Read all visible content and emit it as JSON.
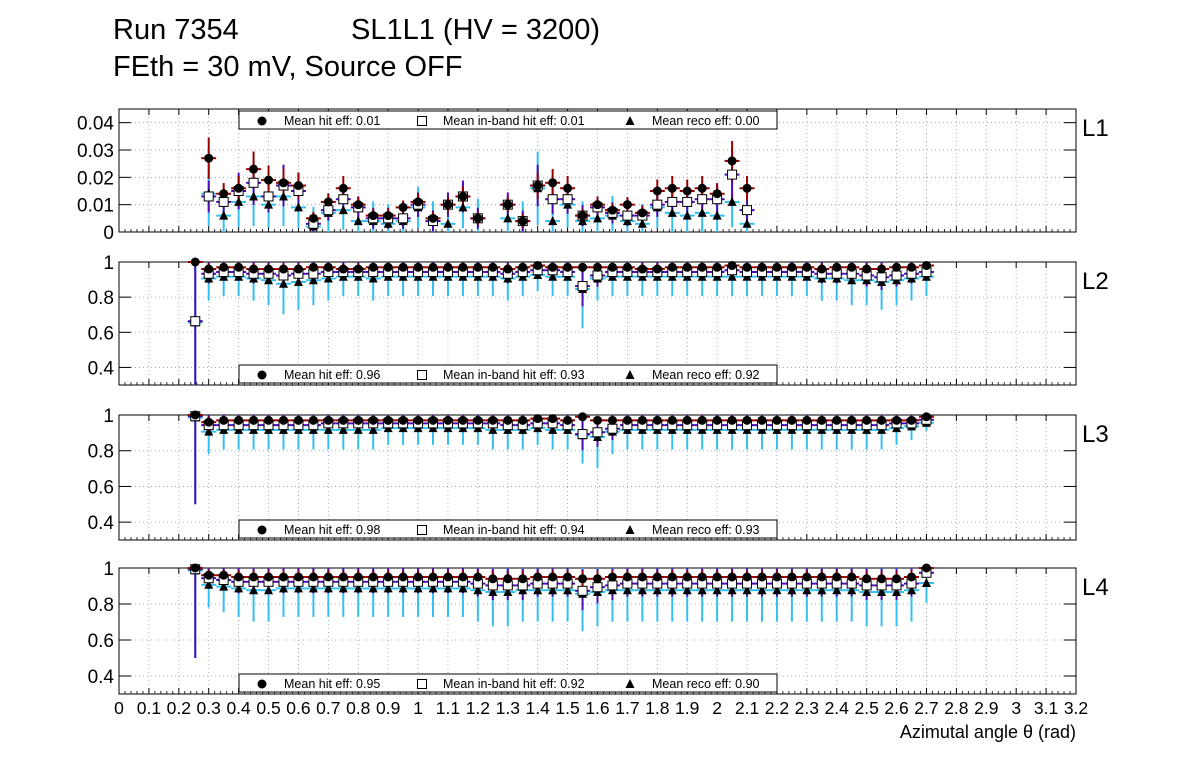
{
  "header": {
    "run": "Run 7354",
    "chamber": "SL1L1 (HV = 3200)",
    "conditions": "FEth = 30 mV, Source OFF"
  },
  "colors": {
    "hit": "#990000",
    "inband": "#4b0bb8",
    "reco": "#33c0f0",
    "marker": "#000000",
    "grid": "#999999"
  },
  "chart_data": {
    "type": "scatter",
    "xlabel": "Azimutal angle θ (rad)",
    "xlim": [
      0,
      3.2
    ],
    "x_ticks": [
      "0",
      "0.1",
      "0.2",
      "0.3",
      "0.4",
      "0.5",
      "0.6",
      "0.7",
      "0.8",
      "0.9",
      "1",
      "1.1",
      "1.2",
      "1.3",
      "1.4",
      "1.5",
      "1.6",
      "1.7",
      "1.8",
      "1.9",
      "2",
      "2.1",
      "2.2",
      "2.3",
      "2.4",
      "2.5",
      "2.6",
      "2.7",
      "2.8",
      "2.9",
      "3",
      "3.1",
      "3.2"
    ],
    "x_tick_values": [
      0,
      0.1,
      0.2,
      0.3,
      0.4,
      0.5,
      0.6,
      0.7,
      0.8,
      0.9,
      1.0,
      1.1,
      1.2,
      1.3,
      1.4,
      1.5,
      1.6,
      1.7,
      1.8,
      1.9,
      2.0,
      2.1,
      2.2,
      2.3,
      2.4,
      2.5,
      2.6,
      2.7,
      2.8,
      2.9,
      3.0,
      3.1,
      3.2
    ],
    "x_tick_labels": [
      "0",
      "0.1",
      "0.2",
      "0.3",
      "0.4",
      "0.5",
      "0.6",
      "0.7",
      "0.8",
      "0.9",
      "1",
      "1.1",
      "1.2",
      "1.3",
      "1.4",
      "1.5",
      "1.6",
      "1.7",
      "1.8",
      "1.9",
      "2",
      "2.1",
      "2.2",
      "2.3",
      "2.4",
      "2.5",
      "2.6",
      "2.7",
      "2.8",
      "2.9",
      "3",
      "3.1",
      "3.2"
    ],
    "x_tick_text": "0 0.10.20.30.40.50.60.70.80.9 1 1.11.21.31.41.51.61.71.81.9 2 2.12.22.32.42.52.62.72.82.9 3 3.13.2",
    "legend_labels": [
      "Mean hit  eff:",
      "Mean in-band hit eff:",
      "Mean reco eff:"
    ],
    "panels": [
      {
        "name": "L1",
        "ylim": [
          0,
          0.045
        ],
        "yticks": [
          0,
          0.01,
          0.02,
          0.03,
          0.04
        ],
        "ytick_labels": [
          "0",
          "0.01",
          "0.02",
          "0.03",
          "0.04"
        ],
        "legend_position": "top",
        "means": [
          "0.01",
          "0.01",
          "0.00"
        ],
        "x": [
          0.255,
          0.3,
          0.325,
          0.35,
          0.375,
          0.4,
          0.425,
          0.45,
          0.475,
          0.5,
          0.525,
          0.55,
          0.575,
          0.6,
          0.625,
          0.65,
          0.675,
          0.7,
          0.725,
          0.75,
          0.775,
          0.8,
          0.825,
          0.85,
          0.875,
          0.9,
          0.925,
          0.95,
          0.975,
          1.0,
          1.025,
          1.05,
          1.075,
          1.1,
          1.125,
          1.15,
          1.175,
          1.2,
          1.225,
          1.25,
          1.275,
          1.3,
          1.325,
          1.35,
          1.375,
          1.4,
          1.425,
          1.45,
          1.475,
          1.5,
          1.525,
          1.55,
          1.575,
          1.6,
          1.625,
          1.65,
          1.675,
          1.7,
          1.725,
          1.75,
          1.775,
          1.8,
          1.825,
          1.85,
          1.875,
          1.9,
          1.925,
          1.95,
          1.975,
          2.0,
          2.025,
          2.05,
          2.075,
          2.1,
          2.125,
          2.15,
          2.175,
          2.2,
          2.225,
          2.25,
          2.275,
          2.3,
          2.325,
          2.35,
          2.375,
          2.4,
          2.425,
          2.45,
          2.475,
          2.5,
          2.525,
          2.55,
          2.575,
          2.6,
          2.625,
          2.65,
          2.675,
          2.7,
          2.725
        ],
        "hit": [
          null,
          0.027,
          null,
          0.014,
          null,
          0.016,
          null,
          0.023,
          null,
          0.019,
          null,
          0.018,
          null,
          0.017,
          null,
          0.005,
          null,
          0.011,
          null,
          0.016,
          null,
          0.01,
          null,
          0.006,
          null,
          0.006,
          null,
          0.009,
          null,
          0.011,
          null,
          0.005,
          null,
          0.01,
          null,
          0.013,
          null,
          0.005,
          null,
          null,
          null,
          0.01,
          null,
          0.004,
          null,
          0.017,
          null,
          0.018,
          null,
          0.016,
          null,
          0.006,
          null,
          0.01,
          null,
          0.008,
          null,
          0.01,
          null,
          0.007,
          null,
          0.015,
          null,
          0.016,
          null,
          0.015,
          null,
          0.016,
          null,
          0.014,
          null,
          0.026,
          null,
          0.016,
          null,
          null,
          null,
          null,
          null,
          null,
          null,
          null,
          null,
          null,
          null,
          null,
          null,
          null,
          null,
          null,
          null,
          null,
          null,
          null,
          null,
          null,
          null
        ],
        "inband": [
          null,
          0.013,
          null,
          0.011,
          null,
          0.015,
          null,
          0.018,
          null,
          0.013,
          null,
          0.017,
          null,
          0.015,
          null,
          0.003,
          null,
          0.008,
          null,
          0.012,
          null,
          0.009,
          null,
          0.005,
          null,
          0.005,
          null,
          0.005,
          null,
          0.01,
          null,
          0.004,
          null,
          0.01,
          null,
          0.013,
          null,
          0.005,
          null,
          null,
          null,
          0.01,
          null,
          0.004,
          null,
          0.017,
          null,
          0.012,
          null,
          0.012,
          null,
          0.006,
          null,
          0.009,
          null,
          0.007,
          null,
          0.006,
          null,
          0.006,
          null,
          0.01,
          null,
          0.011,
          null,
          0.011,
          null,
          0.012,
          null,
          0.012,
          null,
          0.021,
          null,
          0.008,
          null,
          null,
          null,
          null,
          null,
          null,
          null,
          null,
          null,
          null,
          null,
          null,
          null,
          null,
          null,
          null,
          null,
          null,
          null,
          null,
          null,
          null,
          null
        ],
        "reco": [
          null,
          0.014,
          null,
          0.006,
          null,
          0.011,
          null,
          0.013,
          null,
          0.01,
          null,
          0.013,
          null,
          0.009,
          null,
          0.002,
          null,
          0.007,
          null,
          0.008,
          null,
          0.004,
          null,
          0.004,
          null,
          0.003,
          null,
          0.004,
          null,
          0.009,
          null,
          0.004,
          null,
          0.003,
          null,
          0.009,
          null,
          0.005,
          null,
          null,
          null,
          0.005,
          null,
          0.004,
          null,
          0.016,
          null,
          0.004,
          null,
          0.01,
          null,
          0.004,
          null,
          0.005,
          null,
          0.006,
          null,
          0.004,
          null,
          0.003,
          null,
          0.009,
          null,
          0.007,
          null,
          0.006,
          null,
          0.007,
          null,
          0.006,
          null,
          0.011,
          null,
          0.003,
          null,
          null,
          null,
          null,
          null,
          null,
          null,
          null,
          null,
          null,
          null,
          null,
          null,
          null,
          null,
          null,
          null,
          null,
          null,
          null,
          null,
          null,
          null
        ]
      },
      {
        "name": "L2",
        "ylim": [
          0.3,
          1.0
        ],
        "yticks": [
          0.4,
          0.6,
          0.8,
          1.0
        ],
        "ytick_labels": [
          "0.4",
          "0.6",
          "0.8",
          "1"
        ],
        "legend_position": "bottom",
        "means": [
          "0.96",
          "0.93",
          "0.92"
        ],
        "x": [
          0.255,
          0.3,
          0.35,
          0.4,
          0.45,
          0.5,
          0.55,
          0.6,
          0.65,
          0.7,
          0.75,
          0.8,
          0.85,
          0.9,
          0.95,
          1.0,
          1.05,
          1.1,
          1.15,
          1.2,
          1.25,
          1.3,
          1.35,
          1.4,
          1.45,
          1.5,
          1.55,
          1.6,
          1.65,
          1.7,
          1.75,
          1.8,
          1.85,
          1.9,
          1.95,
          2.0,
          2.05,
          2.1,
          2.15,
          2.2,
          2.25,
          2.3,
          2.35,
          2.4,
          2.45,
          2.5,
          2.55,
          2.6,
          2.65,
          2.7
        ],
        "hit": [
          1.0,
          0.96,
          0.97,
          0.97,
          0.96,
          0.96,
          0.96,
          0.96,
          0.97,
          0.97,
          0.96,
          0.96,
          0.97,
          0.97,
          0.97,
          0.97,
          0.97,
          0.97,
          0.97,
          0.97,
          0.97,
          0.96,
          0.97,
          0.98,
          0.97,
          0.97,
          0.97,
          0.97,
          0.97,
          0.97,
          0.96,
          0.96,
          0.97,
          0.97,
          0.97,
          0.97,
          0.98,
          0.97,
          0.97,
          0.97,
          0.97,
          0.97,
          0.96,
          0.97,
          0.97,
          0.96,
          0.96,
          0.97,
          0.97,
          0.98
        ],
        "inband": [
          0.67,
          0.94,
          0.95,
          0.95,
          0.94,
          0.94,
          0.93,
          0.94,
          0.94,
          0.95,
          0.95,
          0.95,
          0.95,
          0.95,
          0.95,
          0.95,
          0.95,
          0.95,
          0.95,
          0.95,
          0.95,
          0.94,
          0.95,
          0.96,
          0.96,
          0.95,
          0.87,
          0.93,
          0.95,
          0.95,
          0.95,
          0.95,
          0.95,
          0.95,
          0.95,
          0.95,
          0.96,
          0.95,
          0.95,
          0.95,
          0.95,
          0.95,
          0.94,
          0.94,
          0.94,
          0.93,
          0.92,
          0.93,
          0.94,
          0.95
        ],
        "reco": [
          0.67,
          0.92,
          0.93,
          0.93,
          0.92,
          0.91,
          0.89,
          0.9,
          0.91,
          0.92,
          0.93,
          0.93,
          0.92,
          0.93,
          0.93,
          0.93,
          0.93,
          0.93,
          0.93,
          0.93,
          0.93,
          0.92,
          0.93,
          0.94,
          0.93,
          0.93,
          0.86,
          0.92,
          0.93,
          0.93,
          0.93,
          0.93,
          0.93,
          0.93,
          0.93,
          0.93,
          0.93,
          0.93,
          0.93,
          0.93,
          0.93,
          0.93,
          0.92,
          0.92,
          0.91,
          0.91,
          0.9,
          0.91,
          0.92,
          0.93
        ]
      },
      {
        "name": "L3",
        "ylim": [
          0.3,
          1.0
        ],
        "yticks": [
          0.4,
          0.6,
          0.8,
          1.0
        ],
        "ytick_labels": [
          "0.4",
          "0.6",
          "0.8",
          "1"
        ],
        "legend_position": "bottom",
        "means": [
          "0.98",
          "0.94",
          "0.93"
        ],
        "x": [
          0.255,
          0.3,
          0.35,
          0.4,
          0.45,
          0.5,
          0.55,
          0.6,
          0.65,
          0.7,
          0.75,
          0.8,
          0.85,
          0.9,
          0.95,
          1.0,
          1.05,
          1.1,
          1.15,
          1.2,
          1.25,
          1.3,
          1.35,
          1.4,
          1.45,
          1.5,
          1.55,
          1.6,
          1.65,
          1.7,
          1.75,
          1.8,
          1.85,
          1.9,
          1.95,
          2.0,
          2.05,
          2.1,
          2.15,
          2.2,
          2.25,
          2.3,
          2.35,
          2.4,
          2.45,
          2.5,
          2.55,
          2.6,
          2.65,
          2.7
        ],
        "hit": [
          1.0,
          0.96,
          0.97,
          0.97,
          0.97,
          0.97,
          0.97,
          0.97,
          0.97,
          0.97,
          0.97,
          0.97,
          0.97,
          0.97,
          0.97,
          0.97,
          0.97,
          0.97,
          0.97,
          0.97,
          0.97,
          0.97,
          0.97,
          0.98,
          0.98,
          0.97,
          0.99,
          0.97,
          0.97,
          0.97,
          0.97,
          0.97,
          0.97,
          0.97,
          0.97,
          0.97,
          0.97,
          0.97,
          0.97,
          0.97,
          0.97,
          0.97,
          0.97,
          0.97,
          0.97,
          0.97,
          0.97,
          0.97,
          0.97,
          0.99
        ],
        "inband": [
          1.0,
          0.95,
          0.95,
          0.95,
          0.95,
          0.95,
          0.95,
          0.95,
          0.95,
          0.96,
          0.96,
          0.96,
          0.96,
          0.96,
          0.96,
          0.96,
          0.96,
          0.96,
          0.96,
          0.96,
          0.96,
          0.95,
          0.95,
          0.96,
          0.96,
          0.95,
          0.9,
          0.91,
          0.93,
          0.95,
          0.95,
          0.95,
          0.95,
          0.95,
          0.95,
          0.95,
          0.95,
          0.95,
          0.95,
          0.95,
          0.95,
          0.95,
          0.95,
          0.95,
          0.95,
          0.95,
          0.95,
          0.96,
          0.96,
          0.98
        ],
        "reco": [
          1.0,
          0.92,
          0.93,
          0.93,
          0.93,
          0.93,
          0.93,
          0.93,
          0.93,
          0.93,
          0.93,
          0.93,
          0.93,
          0.94,
          0.94,
          0.94,
          0.94,
          0.94,
          0.94,
          0.94,
          0.93,
          0.93,
          0.93,
          0.94,
          0.93,
          0.93,
          0.9,
          0.89,
          0.92,
          0.93,
          0.93,
          0.93,
          0.93,
          0.93,
          0.93,
          0.93,
          0.93,
          0.93,
          0.93,
          0.93,
          0.93,
          0.93,
          0.93,
          0.93,
          0.93,
          0.93,
          0.93,
          0.94,
          0.95,
          0.97
        ]
      },
      {
        "name": "L4",
        "ylim": [
          0.3,
          1.0
        ],
        "yticks": [
          0.4,
          0.6,
          0.8,
          1.0
        ],
        "ytick_labels": [
          "0.4",
          "0.6",
          "0.8",
          "1"
        ],
        "legend_position": "bottom",
        "means": [
          "0.95",
          "0.92",
          "0.90"
        ],
        "x": [
          0.255,
          0.3,
          0.35,
          0.4,
          0.45,
          0.5,
          0.55,
          0.6,
          0.65,
          0.7,
          0.75,
          0.8,
          0.85,
          0.9,
          0.95,
          1.0,
          1.05,
          1.1,
          1.15,
          1.2,
          1.25,
          1.3,
          1.35,
          1.4,
          1.45,
          1.5,
          1.55,
          1.6,
          1.65,
          1.7,
          1.75,
          1.8,
          1.85,
          1.9,
          1.95,
          2.0,
          2.05,
          2.1,
          2.15,
          2.2,
          2.25,
          2.3,
          2.35,
          2.4,
          2.45,
          2.5,
          2.55,
          2.6,
          2.65,
          2.7
        ],
        "hit": [
          1.0,
          0.96,
          0.96,
          0.95,
          0.95,
          0.95,
          0.95,
          0.95,
          0.95,
          0.95,
          0.95,
          0.95,
          0.95,
          0.95,
          0.95,
          0.95,
          0.95,
          0.95,
          0.95,
          0.95,
          0.94,
          0.94,
          0.94,
          0.95,
          0.95,
          0.95,
          0.94,
          0.94,
          0.95,
          0.95,
          0.95,
          0.95,
          0.95,
          0.95,
          0.95,
          0.95,
          0.95,
          0.95,
          0.95,
          0.95,
          0.95,
          0.95,
          0.95,
          0.95,
          0.95,
          0.94,
          0.94,
          0.94,
          0.95,
          1.0
        ],
        "inband": [
          1.0,
          0.95,
          0.94,
          0.93,
          0.93,
          0.93,
          0.93,
          0.93,
          0.93,
          0.93,
          0.93,
          0.93,
          0.93,
          0.93,
          0.93,
          0.93,
          0.93,
          0.93,
          0.93,
          0.92,
          0.91,
          0.91,
          0.91,
          0.92,
          0.92,
          0.92,
          0.88,
          0.9,
          0.91,
          0.92,
          0.92,
          0.92,
          0.92,
          0.92,
          0.92,
          0.92,
          0.92,
          0.92,
          0.92,
          0.92,
          0.92,
          0.92,
          0.92,
          0.92,
          0.92,
          0.91,
          0.91,
          0.91,
          0.92,
          0.98
        ],
        "reco": [
          1.0,
          0.92,
          0.91,
          0.9,
          0.89,
          0.89,
          0.9,
          0.9,
          0.9,
          0.9,
          0.9,
          0.9,
          0.9,
          0.9,
          0.9,
          0.9,
          0.9,
          0.9,
          0.9,
          0.89,
          0.88,
          0.88,
          0.89,
          0.89,
          0.89,
          0.89,
          0.87,
          0.88,
          0.89,
          0.89,
          0.89,
          0.89,
          0.89,
          0.89,
          0.89,
          0.89,
          0.89,
          0.89,
          0.89,
          0.89,
          0.89,
          0.89,
          0.89,
          0.89,
          0.89,
          0.88,
          0.88,
          0.88,
          0.89,
          0.93
        ]
      }
    ]
  }
}
